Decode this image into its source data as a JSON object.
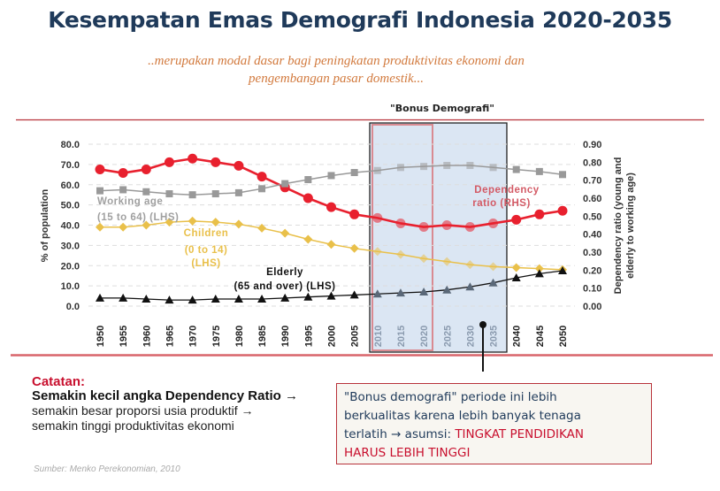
{
  "title": "Kesempatan Emas Demografi Indonesia 2020-2035",
  "subtitle_line1": "..merupakan modal dasar bagi peningkatan produktivitas ekonomi dan",
  "subtitle_line2": "pengembangan pasar domestik...",
  "bonus_label": "\"Bonus Demografi\"",
  "notes": {
    "heading": "Catatan:",
    "bold_line": "Semakin kecil angka Dependency Ratio →",
    "line2": "semakin besar proporsi usia produktif →",
    "line3": "semakin tinggi produktivitas ekonomi"
  },
  "callout": {
    "line1": "\"Bonus demografi\" periode ini lebih",
    "line2": "berkualitas karena lebih banyak tenaga",
    "line3_prefix": "terlatih → asumsi: ",
    "line3_red": "TINGKAT PENDIDIKAN",
    "line4_red": "HARUS LEBIH TINGGI"
  },
  "source": "Sumber: Menko Perekonomian, 2010",
  "colors": {
    "title": "#1f3a5a",
    "subtitle": "#d27a3e",
    "dependency": "#e8202e",
    "working": "#999999",
    "children": "#e9c04a",
    "elderly": "#111111",
    "highlight": "#dbe6f3",
    "accent_red": "#c8102e"
  },
  "chart_data": {
    "type": "line",
    "x": [
      1950,
      1955,
      1960,
      1965,
      1970,
      1975,
      1980,
      1985,
      1990,
      1995,
      2000,
      2005,
      2010,
      2015,
      2020,
      2025,
      2030,
      2035,
      2040,
      2045,
      2050
    ],
    "ylabel_left": "% of population",
    "ylabel_right": "Dependency ratio (young and elderly to working age)",
    "ylim_left": [
      0,
      80
    ],
    "ylim_right": [
      0,
      0.9
    ],
    "yticks_left": [
      "80.0",
      "70.0",
      "60.0",
      "50.0",
      "40.0",
      "30.0",
      "20.0",
      "10.0",
      "0.0"
    ],
    "yticks_right": [
      "0.90",
      "0.80",
      "0.70",
      "0.60",
      "0.50",
      "0.40",
      "0.30",
      "0.20",
      "0.10",
      "0.00"
    ],
    "grid": true,
    "highlight_ranges": [
      [
        2010,
        2035
      ],
      [
        2010,
        2020
      ]
    ],
    "series": [
      {
        "name": "Dependency ratio (RHS)",
        "label_line1": "Dependency",
        "label_line2": "ratio (RHS)",
        "axis": "right",
        "marker": "circle",
        "values": [
          0.76,
          0.74,
          0.76,
          0.8,
          0.82,
          0.8,
          0.78,
          0.72,
          0.66,
          0.6,
          0.55,
          0.51,
          0.49,
          0.46,
          0.44,
          0.45,
          0.44,
          0.46,
          0.48,
          0.51,
          0.53
        ]
      },
      {
        "name": "Working age (15 to 64) (LHS)",
        "label_line1": "Working age",
        "label_line2": "(15 to 64) (LHS)",
        "axis": "left",
        "marker": "square",
        "values": [
          57.0,
          57.5,
          56.5,
          55.5,
          55.0,
          55.5,
          56.0,
          58.0,
          60.5,
          62.5,
          64.5,
          66.0,
          67.0,
          68.5,
          69.0,
          69.5,
          69.5,
          68.5,
          67.5,
          66.5,
          65.0
        ]
      },
      {
        "name": "Children (0 to 14) (LHS)",
        "label_line1": "Children",
        "label_line2": "(0 to 14)",
        "label_line3": "(LHS)",
        "axis": "left",
        "marker": "diamond",
        "values": [
          39.0,
          39.0,
          40.0,
          41.5,
          42.0,
          41.5,
          40.5,
          38.5,
          36.0,
          33.0,
          30.5,
          28.5,
          27.0,
          25.5,
          23.5,
          22.0,
          20.5,
          19.5,
          19.0,
          18.5,
          18.0
        ]
      },
      {
        "name": "Elderly (65 and over) (LHS)",
        "label_line1": "Elderly",
        "label_line2": "(65 and over) (LHS)",
        "axis": "left",
        "marker": "triangle",
        "values": [
          4.0,
          4.0,
          3.5,
          3.0,
          3.0,
          3.5,
          3.5,
          3.5,
          4.0,
          4.5,
          5.0,
          5.5,
          6.0,
          6.5,
          7.0,
          8.0,
          9.5,
          11.5,
          14.0,
          16.0,
          17.5
        ]
      }
    ]
  }
}
